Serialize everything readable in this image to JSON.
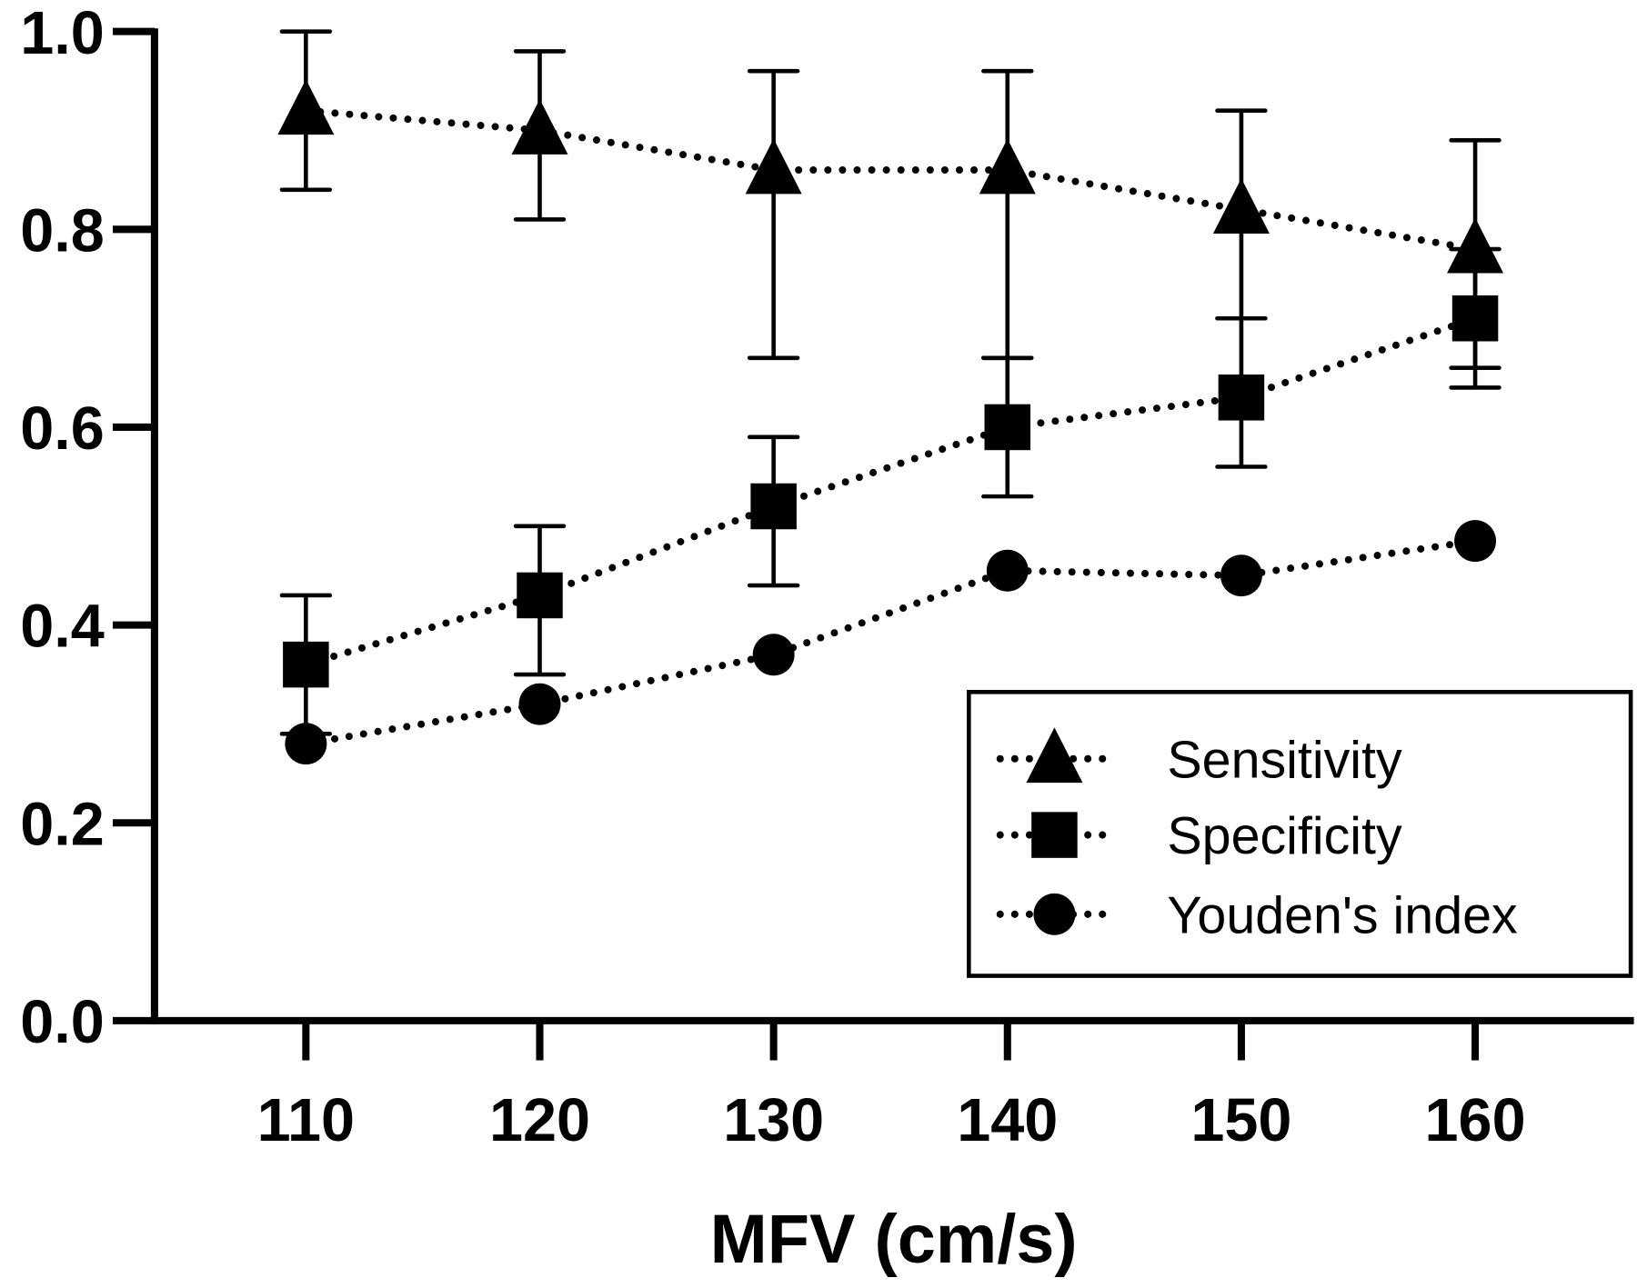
{
  "chart_data": {
    "type": "line",
    "title": "",
    "xlabel": "MFV (cm/s)",
    "ylabel": "",
    "x": [
      110,
      120,
      130,
      140,
      150,
      160
    ],
    "xlim": [
      103.5,
      166.5
    ],
    "ylim": [
      0,
      1.0
    ],
    "yticks": [
      "0.0",
      "0.2",
      "0.4",
      "0.6",
      "0.8",
      "1.0"
    ],
    "xticks": [
      "110",
      "120",
      "130",
      "140",
      "150",
      "160"
    ],
    "grid": false,
    "legend_position": "bottom-right",
    "line_style": "dotted",
    "color": "#000000",
    "series": [
      {
        "name": "Sensitivity",
        "marker": "triangle",
        "values": [
          0.92,
          0.9,
          0.86,
          0.86,
          0.82,
          0.78
        ],
        "ci_upper": [
          1.0,
          0.98,
          0.96,
          0.96,
          0.92,
          0.89
        ],
        "ci_lower": [
          0.84,
          0.81,
          0.67,
          0.67,
          0.71,
          0.66
        ]
      },
      {
        "name": "Specificity",
        "marker": "square",
        "values": [
          0.36,
          0.43,
          0.52,
          0.6,
          0.63,
          0.71
        ],
        "ci_upper": [
          0.43,
          0.5,
          0.59,
          0.67,
          0.71,
          0.78
        ],
        "ci_lower": [
          0.29,
          0.35,
          0.44,
          0.53,
          0.56,
          0.64
        ]
      },
      {
        "name": "Youden's index",
        "marker": "circle",
        "values": [
          0.28,
          0.32,
          0.37,
          0.455,
          0.45,
          0.485
        ]
      }
    ]
  }
}
